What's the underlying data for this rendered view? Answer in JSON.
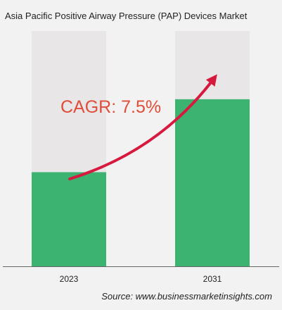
{
  "chart_data": {
    "type": "bar",
    "title": "Asia Pacific Positive Airway Pressure (PAP) Devices Market",
    "categories": [
      "2023",
      "2031"
    ],
    "values": [
      0.4,
      0.71
    ],
    "ylim": [
      0,
      1
    ],
    "xlabel": "",
    "ylabel": "",
    "grid": false,
    "annotation": "CAGR: 7.5%",
    "source": "Source: www.businessmarketinsights.com",
    "colors": {
      "bar": "#3cb371",
      "track": "#e8e6e6",
      "arrow": "#d7193f",
      "annotation": "#e04e3a",
      "axis": "#666666",
      "background": "#f2f2f2"
    }
  }
}
